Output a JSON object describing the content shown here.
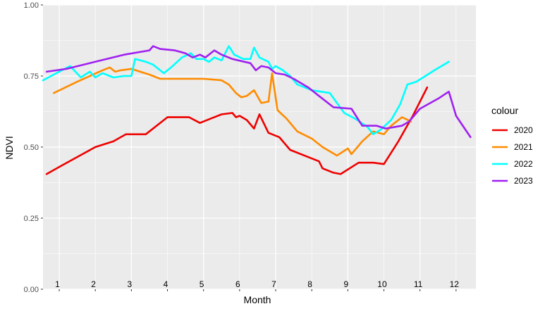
{
  "chart_data": {
    "type": "line",
    "title": "",
    "xlabel": "Month",
    "ylabel": "NDVI",
    "ylim": [
      0,
      1
    ],
    "yticks": [
      "0.00",
      "0.25",
      "0.50",
      "0.75",
      "1.00"
    ],
    "ytick_values": [
      0,
      0.25,
      0.5,
      0.75,
      1.0
    ],
    "xlim": [
      0.55,
      12.55
    ],
    "month_labels": [
      "1",
      "2",
      "3",
      "4",
      "5",
      "6",
      "7",
      "8",
      "9",
      "10",
      "11",
      "12"
    ],
    "grid": true,
    "legend": {
      "title": "colour",
      "placement": "right"
    },
    "series": [
      {
        "name": "2020",
        "color": "#ee0000",
        "points": [
          [
            0.65,
            0.405
          ],
          [
            1.0,
            0.43
          ],
          [
            1.5,
            0.465
          ],
          [
            2.0,
            0.5
          ],
          [
            2.5,
            0.52
          ],
          [
            2.85,
            0.545
          ],
          [
            3.4,
            0.545
          ],
          [
            4.0,
            0.605
          ],
          [
            4.6,
            0.605
          ],
          [
            4.9,
            0.585
          ],
          [
            5.2,
            0.6
          ],
          [
            5.5,
            0.615
          ],
          [
            5.8,
            0.62
          ],
          [
            5.9,
            0.605
          ],
          [
            6.0,
            0.61
          ],
          [
            6.2,
            0.595
          ],
          [
            6.4,
            0.565
          ],
          [
            6.55,
            0.615
          ],
          [
            6.8,
            0.55
          ],
          [
            7.1,
            0.535
          ],
          [
            7.4,
            0.49
          ],
          [
            8.0,
            0.46
          ],
          [
            8.2,
            0.45
          ],
          [
            8.3,
            0.425
          ],
          [
            8.6,
            0.41
          ],
          [
            8.8,
            0.405
          ],
          [
            9.3,
            0.445
          ],
          [
            9.7,
            0.445
          ],
          [
            10.0,
            0.44
          ],
          [
            10.4,
            0.52
          ],
          [
            10.8,
            0.61
          ],
          [
            11.2,
            0.71
          ]
        ]
      },
      {
        "name": "2021",
        "color": "#ff8c00",
        "points": [
          [
            0.85,
            0.69
          ],
          [
            1.5,
            0.73
          ],
          [
            2.2,
            0.77
          ],
          [
            2.4,
            0.78
          ],
          [
            2.55,
            0.765
          ],
          [
            2.7,
            0.77
          ],
          [
            3.0,
            0.775
          ],
          [
            3.5,
            0.755
          ],
          [
            3.8,
            0.74
          ],
          [
            4.0,
            0.74
          ],
          [
            4.5,
            0.74
          ],
          [
            5.0,
            0.74
          ],
          [
            5.5,
            0.735
          ],
          [
            5.7,
            0.72
          ],
          [
            5.9,
            0.69
          ],
          [
            6.05,
            0.675
          ],
          [
            6.2,
            0.68
          ],
          [
            6.4,
            0.7
          ],
          [
            6.6,
            0.655
          ],
          [
            6.8,
            0.66
          ],
          [
            6.9,
            0.76
          ],
          [
            7.05,
            0.63
          ],
          [
            7.3,
            0.6
          ],
          [
            7.6,
            0.555
          ],
          [
            8.0,
            0.53
          ],
          [
            8.3,
            0.5
          ],
          [
            8.7,
            0.47
          ],
          [
            9.0,
            0.495
          ],
          [
            9.1,
            0.475
          ],
          [
            9.4,
            0.52
          ],
          [
            9.7,
            0.555
          ],
          [
            10.0,
            0.545
          ],
          [
            10.2,
            0.575
          ],
          [
            10.5,
            0.605
          ],
          [
            10.75,
            0.59
          ]
        ]
      },
      {
        "name": "2022",
        "color": "#00ffff",
        "points": [
          [
            0.55,
            0.735
          ],
          [
            1.0,
            0.765
          ],
          [
            1.3,
            0.785
          ],
          [
            1.6,
            0.745
          ],
          [
            1.85,
            0.765
          ],
          [
            2.0,
            0.745
          ],
          [
            2.2,
            0.76
          ],
          [
            2.5,
            0.745
          ],
          [
            2.8,
            0.75
          ],
          [
            3.0,
            0.75
          ],
          [
            3.1,
            0.81
          ],
          [
            3.4,
            0.8
          ],
          [
            3.6,
            0.79
          ],
          [
            3.9,
            0.76
          ],
          [
            4.1,
            0.78
          ],
          [
            4.4,
            0.815
          ],
          [
            4.65,
            0.83
          ],
          [
            4.8,
            0.81
          ],
          [
            5.0,
            0.81
          ],
          [
            5.15,
            0.8
          ],
          [
            5.3,
            0.815
          ],
          [
            5.5,
            0.805
          ],
          [
            5.7,
            0.855
          ],
          [
            5.85,
            0.825
          ],
          [
            6.1,
            0.81
          ],
          [
            6.3,
            0.81
          ],
          [
            6.4,
            0.85
          ],
          [
            6.55,
            0.815
          ],
          [
            6.8,
            0.8
          ],
          [
            6.9,
            0.775
          ],
          [
            7.0,
            0.785
          ],
          [
            7.2,
            0.77
          ],
          [
            7.4,
            0.75
          ],
          [
            7.6,
            0.72
          ],
          [
            8.0,
            0.7
          ],
          [
            8.5,
            0.69
          ],
          [
            8.9,
            0.62
          ],
          [
            9.2,
            0.6
          ],
          [
            9.55,
            0.57
          ],
          [
            9.7,
            0.545
          ],
          [
            9.9,
            0.56
          ],
          [
            10.2,
            0.595
          ],
          [
            10.45,
            0.65
          ],
          [
            10.65,
            0.72
          ],
          [
            10.9,
            0.73
          ],
          [
            11.4,
            0.77
          ],
          [
            11.8,
            0.8
          ]
        ]
      },
      {
        "name": "2023",
        "color": "#a020f0",
        "points": [
          [
            0.65,
            0.765
          ],
          [
            1.2,
            0.775
          ],
          [
            2.0,
            0.8
          ],
          [
            2.8,
            0.825
          ],
          [
            3.5,
            0.84
          ],
          [
            3.6,
            0.855
          ],
          [
            3.8,
            0.845
          ],
          [
            4.2,
            0.84
          ],
          [
            4.5,
            0.83
          ],
          [
            4.7,
            0.815
          ],
          [
            4.9,
            0.825
          ],
          [
            5.05,
            0.815
          ],
          [
            5.3,
            0.84
          ],
          [
            5.5,
            0.825
          ],
          [
            5.8,
            0.81
          ],
          [
            6.3,
            0.795
          ],
          [
            6.45,
            0.77
          ],
          [
            6.6,
            0.785
          ],
          [
            6.8,
            0.78
          ],
          [
            7.0,
            0.76
          ],
          [
            7.25,
            0.755
          ],
          [
            7.5,
            0.74
          ],
          [
            7.7,
            0.725
          ],
          [
            7.9,
            0.71
          ],
          [
            8.2,
            0.68
          ],
          [
            8.6,
            0.64
          ],
          [
            9.1,
            0.635
          ],
          [
            9.4,
            0.575
          ],
          [
            9.8,
            0.575
          ],
          [
            10.05,
            0.565
          ],
          [
            10.5,
            0.575
          ],
          [
            10.7,
            0.59
          ],
          [
            11.0,
            0.635
          ],
          [
            11.5,
            0.67
          ],
          [
            11.8,
            0.695
          ],
          [
            12.0,
            0.61
          ],
          [
            12.4,
            0.535
          ]
        ]
      }
    ]
  }
}
